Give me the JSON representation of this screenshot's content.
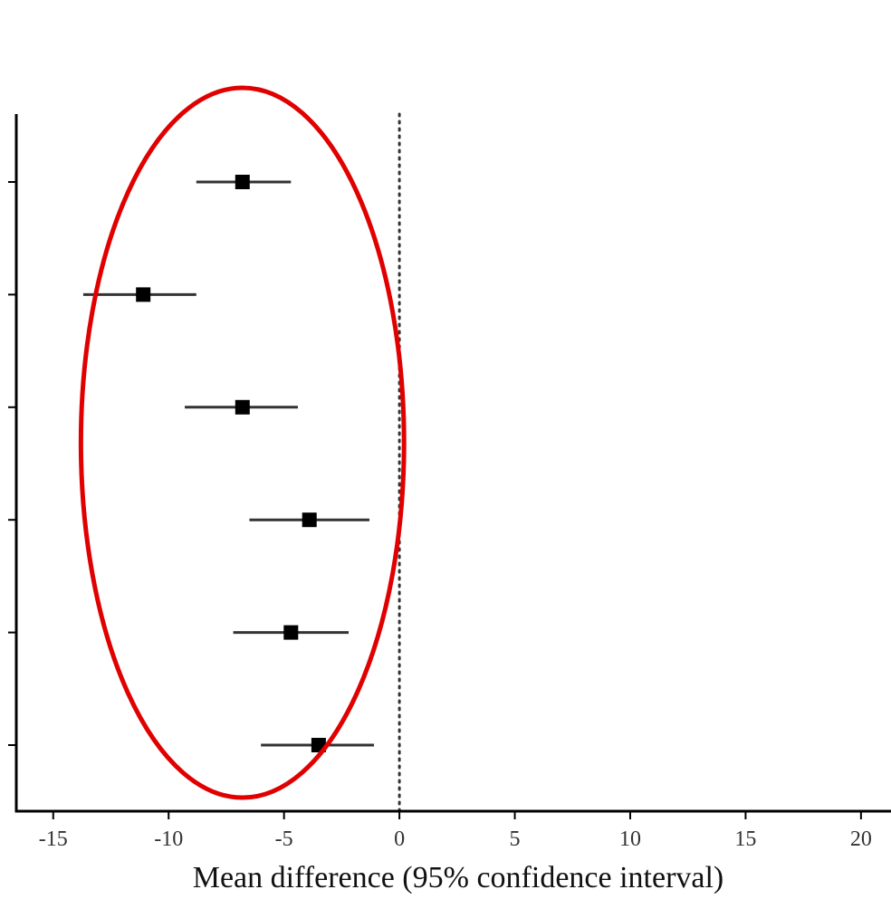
{
  "chart_data": {
    "type": "forest",
    "xlabel": "Mean difference (95% confidence interval)",
    "xlim": [
      -16.6,
      21.3
    ],
    "x_ticks": [
      -15,
      -10,
      -5,
      0,
      5,
      10,
      15,
      20
    ],
    "x_tick_labels": [
      "-15",
      "-10",
      "-5",
      "0",
      "5",
      "10",
      "15",
      "20"
    ],
    "reference_line": 0,
    "grid": false,
    "points": [
      {
        "estimate": -6.8,
        "lower": -8.8,
        "upper": -4.7
      },
      {
        "estimate": -11.1,
        "lower": -13.7,
        "upper": -8.8
      },
      {
        "estimate": -6.8,
        "lower": -9.3,
        "upper": -4.4
      },
      {
        "estimate": -3.9,
        "lower": -6.5,
        "upper": -1.3
      },
      {
        "estimate": -4.7,
        "lower": -7.2,
        "upper": -2.2
      },
      {
        "estimate": -3.5,
        "lower": -6.0,
        "upper": -1.1
      }
    ],
    "annotation": {
      "shape": "ellipse",
      "color": "#e00000",
      "cx": -6.8,
      "rx": 7.0
    }
  }
}
